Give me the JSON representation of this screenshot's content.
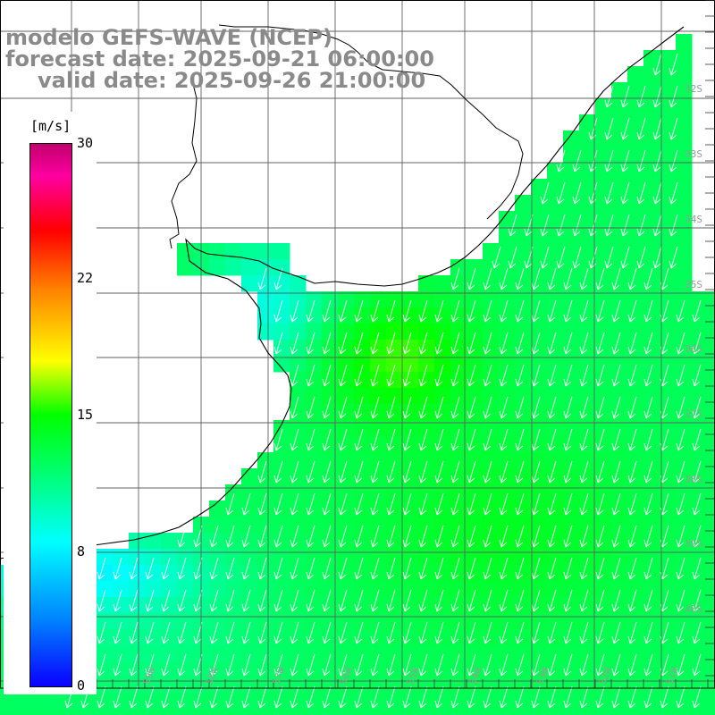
{
  "titles": {
    "line1": "modelo GEFS-WAVE (NCEP)",
    "line2": "forecast date: 2025-09-21 06:00:00",
    "line3": "valid date: 2025-09-26 21:00:00"
  },
  "colorbar": {
    "unit": "[m/s]",
    "ticks": [
      "30",
      "22",
      "15",
      "8",
      "0"
    ],
    "range": [
      0,
      30
    ],
    "palette": [
      "#0a00ff",
      "#0080ff",
      "#00ffff",
      "#00ff80",
      "#00ff00",
      "#ffff00",
      "#ff8000",
      "#ff0000",
      "#ff00a0",
      "#c0006e"
    ]
  },
  "map": {
    "land_color": "#ffffff",
    "coastline_color": "#000000",
    "grid_color": "#606060",
    "arrow_color": "#ffffff",
    "wind_direction": "from NE toward SW",
    "lat_labels": [
      "32S",
      "33S",
      "34S",
      "35S",
      "36S",
      "37S",
      "38S",
      "39S",
      "40S"
    ],
    "lon_labels": [
      "61W",
      "60W",
      "59W",
      "58W",
      "57W",
      "56W",
      "55W",
      "54W",
      "53W",
      "52W",
      "51W"
    ]
  }
}
